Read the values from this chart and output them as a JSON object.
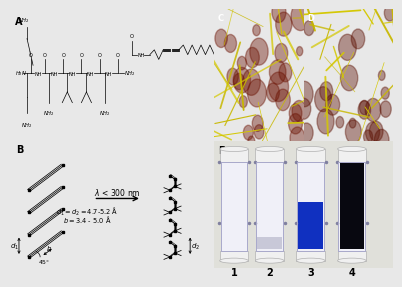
{
  "bg_color": "#e8e8e8",
  "fig_width": 3.8,
  "fig_height": 2.59,
  "nanofiber_C_bg": "#8b1a00",
  "nanofiber_D_bg": "#7a1500",
  "fiber_color": "#d4c800",
  "fiber_color2": "#c8b800",
  "panel_E_bg": "#d8d8d0",
  "tube_labels": [
    "1",
    "2",
    "3",
    "4"
  ],
  "tube1_color": "#eeeef8",
  "tube2_color": "#d0d0e0",
  "tube3_blue": "#2030a0",
  "tube4_dark": "#080818",
  "cuvette_edge": "#aaaacc",
  "cap_color": "#f0f0f0",
  "label_fontsize": 7,
  "fiber_lw_min": 0.4,
  "fiber_lw_max": 1.5
}
